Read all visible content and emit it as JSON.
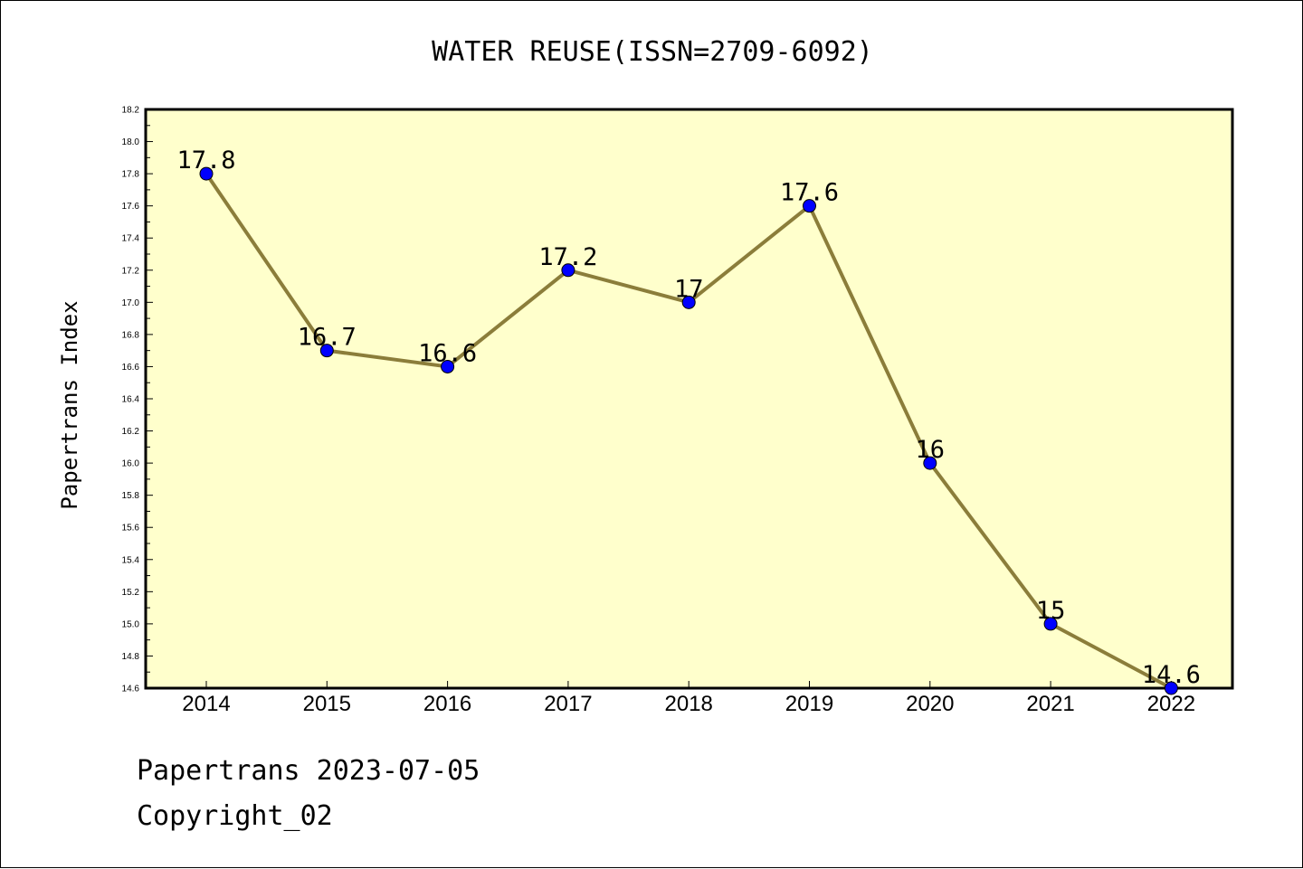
{
  "chart_data": {
    "type": "line",
    "title": "WATER REUSE(ISSN=2709-6092)",
    "ylabel": "Papertrans Index",
    "xlabel": "",
    "x": [
      "2014",
      "2015",
      "2016",
      "2017",
      "2018",
      "2019",
      "2020",
      "2021",
      "2022"
    ],
    "series": [
      {
        "values": [
          17.8,
          16.7,
          16.6,
          17.2,
          17.0,
          17.6,
          16.0,
          15.0,
          14.6
        ],
        "labels": [
          "17.8",
          "16.7",
          "16.6",
          "17.2",
          "17",
          "17.6",
          "16",
          "15",
          "14.6"
        ]
      }
    ],
    "ylim": [
      14.6,
      18.2
    ],
    "yticks": [
      "14.6",
      "14.8",
      "15.0",
      "15.2",
      "15.4",
      "15.6",
      "15.8",
      "16.0",
      "16.2",
      "16.4",
      "16.6",
      "16.8",
      "17.0",
      "17.2",
      "17.4",
      "17.6",
      "17.8",
      "18.0",
      "18.2"
    ],
    "grid": false,
    "colors": {
      "plot_background": "#ffffcc",
      "line": "#8b7d3a",
      "marker": "#0000ff"
    }
  },
  "footer": {
    "line1": "Papertrans 2023-07-05",
    "line2": "Copyright_02"
  }
}
